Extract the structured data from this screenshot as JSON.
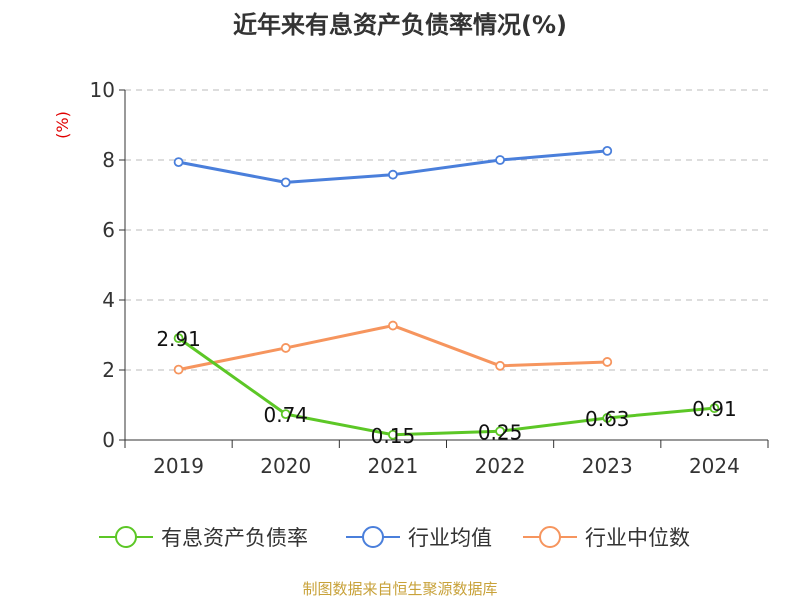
{
  "chart_data": {
    "type": "line",
    "title": "近年来有息资产负债率情况(%)",
    "ylabel": "(%)",
    "xlabel": "",
    "categories": [
      "2019",
      "2020",
      "2021",
      "2022",
      "2023",
      "2024"
    ],
    "ylim": [
      0,
      10
    ],
    "yticks": [
      0,
      2,
      4,
      6,
      8,
      10
    ],
    "grid": true,
    "legend_position": "bottom",
    "series": [
      {
        "name": "有息资产负债率",
        "color": "#5cc726",
        "values": [
          2.91,
          0.74,
          0.15,
          0.25,
          0.63,
          0.91
        ],
        "labels": [
          "2.91",
          "0.74",
          "0.15",
          "0.25",
          "0.63",
          "0.91"
        ]
      },
      {
        "name": "行业均值",
        "color": "#4a7fdb",
        "values": [
          7.94,
          7.36,
          7.58,
          8.0,
          8.26,
          null
        ]
      },
      {
        "name": "行业中位数",
        "color": "#f6955e",
        "values": [
          2.01,
          2.63,
          3.27,
          2.12,
          2.23,
          null
        ]
      }
    ]
  },
  "source": "制图数据来自恒生聚源数据库"
}
